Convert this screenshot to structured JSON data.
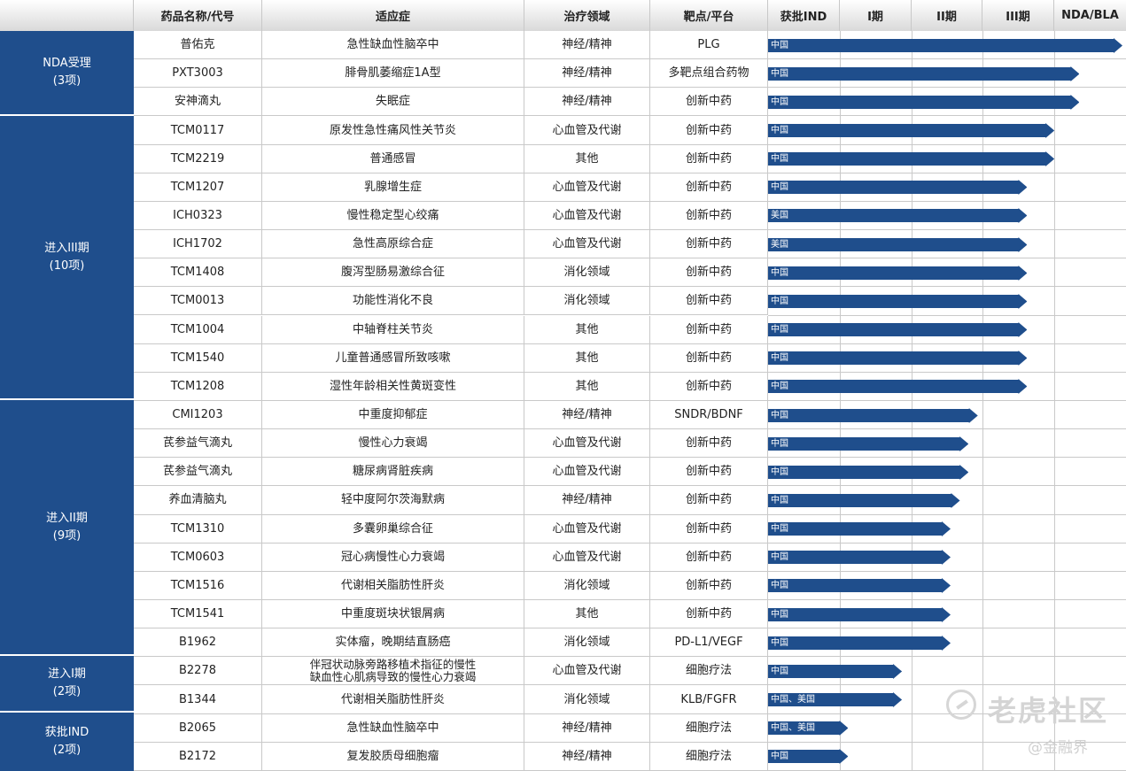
{
  "header": {
    "name": "药品名称/代号",
    "indication": "适应症",
    "area": "治疗领域",
    "target": "靶点/平台",
    "phases": [
      "获批IND",
      "I期",
      "II期",
      "III期",
      "NDA/BLA"
    ]
  },
  "groups": [
    {
      "label": "NDA受理",
      "count": "(3项)",
      "rows": 3
    },
    {
      "label": "进入III期",
      "count": "(10项)",
      "rows": 10
    },
    {
      "label": "进入II期",
      "count": "(9项)",
      "rows": 9
    },
    {
      "label": "进入I期",
      "count": "(2项)",
      "rows": 2
    },
    {
      "label": "获批IND",
      "count": "(2项)",
      "rows": 2
    }
  ],
  "rows": [
    {
      "name": "普佑克",
      "indication": "急性缺血性脑卒中",
      "area": "神经/精神",
      "target": "PLG",
      "region": "中国",
      "progress": 5.0
    },
    {
      "name": "PXT3003",
      "indication": "腓骨肌萎缩症1A型",
      "area": "神经/精神",
      "target": "多靶点组合药物",
      "region": "中国",
      "progress": 4.35
    },
    {
      "name": "安神滴丸",
      "indication": "失眠症",
      "area": "神经/精神",
      "target": "创新中药",
      "region": "中国",
      "progress": 4.35
    },
    {
      "name": "TCM0117",
      "indication": "原发性急性痛风性关节炎",
      "area": "心血管及代谢",
      "target": "创新中药",
      "region": "中国",
      "progress": 4.0
    },
    {
      "name": "TCM2219",
      "indication": "普通感冒",
      "area": "其他",
      "target": "创新中药",
      "region": "中国",
      "progress": 4.0
    },
    {
      "name": "TCM1207",
      "indication": "乳腺增生症",
      "area": "心血管及代谢",
      "target": "创新中药",
      "region": "中国",
      "progress": 3.62
    },
    {
      "name": "ICH0323",
      "indication": "慢性稳定型心绞痛",
      "area": "心血管及代谢",
      "target": "创新中药",
      "region": "美国",
      "progress": 3.62
    },
    {
      "name": "ICH1702",
      "indication": "急性高原综合症",
      "area": "心血管及代谢",
      "target": "创新中药",
      "region": "美国",
      "progress": 3.62
    },
    {
      "name": "TCM1408",
      "indication": "腹泻型肠易激综合征",
      "area": "消化领域",
      "target": "创新中药",
      "region": "中国",
      "progress": 3.62
    },
    {
      "name": "TCM0013",
      "indication": "功能性消化不良",
      "area": "消化领域",
      "target": "创新中药",
      "region": "中国",
      "progress": 3.62
    },
    {
      "name": "TCM1004",
      "indication": "中轴脊柱关节炎",
      "area": "其他",
      "target": "创新中药",
      "region": "中国",
      "progress": 3.62
    },
    {
      "name": "TCM1540",
      "indication": "儿童普通感冒所致咳嗽",
      "area": "其他",
      "target": "创新中药",
      "region": "中国",
      "progress": 3.62
    },
    {
      "name": "TCM1208",
      "indication": "湿性年龄相关性黄斑变性",
      "area": "其他",
      "target": "创新中药",
      "region": "中国",
      "progress": 3.62
    },
    {
      "name": "CMI1203",
      "indication": "中重度抑郁症",
      "area": "神经/精神",
      "target": "SNDR/BDNF",
      "region": "中国",
      "progress": 2.93
    },
    {
      "name": "芪参益气滴丸",
      "indication": "慢性心力衰竭",
      "area": "心血管及代谢",
      "target": "创新中药",
      "region": "中国",
      "progress": 2.8
    },
    {
      "name": "芪参益气滴丸",
      "indication": "糖尿病肾脏疾病",
      "area": "心血管及代谢",
      "target": "创新中药",
      "region": "中国",
      "progress": 2.8
    },
    {
      "name": "养血清脑丸",
      "indication": "轻中度阿尔茨海默病",
      "area": "神经/精神",
      "target": "创新中药",
      "region": "中国",
      "progress": 2.68
    },
    {
      "name": "TCM1310",
      "indication": "多囊卵巢综合征",
      "area": "心血管及代谢",
      "target": "创新中药",
      "region": "中国",
      "progress": 2.55
    },
    {
      "name": "TCM0603",
      "indication": "冠心病慢性心力衰竭",
      "area": "心血管及代谢",
      "target": "创新中药",
      "region": "中国",
      "progress": 2.55
    },
    {
      "name": "TCM1516",
      "indication": "代谢相关脂肪性肝炎",
      "area": "消化领域",
      "target": "创新中药",
      "region": "中国",
      "progress": 2.55
    },
    {
      "name": "TCM1541",
      "indication": "中重度斑块状银屑病",
      "area": "其他",
      "target": "创新中药",
      "region": "中国",
      "progress": 2.55
    },
    {
      "name": "B1962",
      "indication": "实体瘤，晚期结直肠癌",
      "area": "消化领域",
      "target": "PD-L1/VEGF",
      "region": "中国",
      "progress": 2.55
    },
    {
      "name": "B2278",
      "indication": "伴冠状动脉旁路移植术指征的慢性缺血性心肌病导致的慢性心力衰竭",
      "indication_lines": [
        "伴冠状动脉旁路移植术指征的慢性",
        "缺血性心肌病导致的慢性心力衰竭"
      ],
      "area": "心血管及代谢",
      "target": "细胞疗法",
      "region": "中国",
      "progress": 1.87
    },
    {
      "name": "B1344",
      "indication": "代谢相关脂肪性肝炎",
      "area": "消化领域",
      "target": "KLB/FGFR",
      "region": "中国、美国",
      "progress": 1.87
    },
    {
      "name": "B2065",
      "indication": "急性缺血性脑卒中",
      "area": "神经/精神",
      "target": "细胞疗法",
      "region": "中国、美国",
      "progress": 1.12
    },
    {
      "name": "B2172",
      "indication": "复发胶质母细胞瘤",
      "area": "神经/精神",
      "target": "细胞疗法",
      "region": "中国",
      "progress": 1.12
    }
  ],
  "colors": {
    "stage": "#1f4e8c",
    "bar": "#1f4e8c",
    "grid": "#c9c9c9"
  },
  "watermark": {
    "main": "老虎社区",
    "sub": "@金融界",
    "logo": "tiger-logo-icon"
  }
}
